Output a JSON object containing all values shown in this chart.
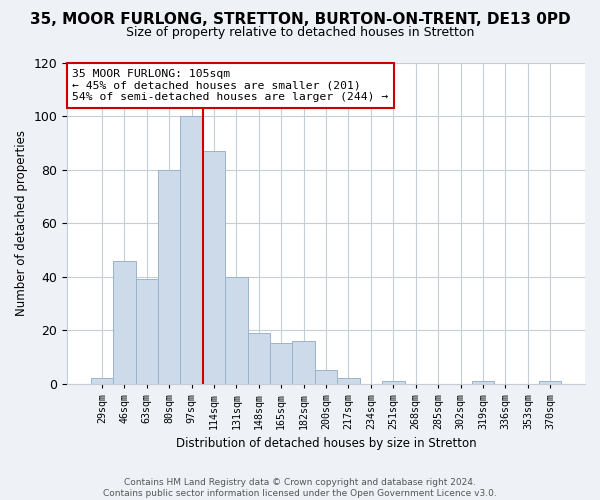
{
  "title": "35, MOOR FURLONG, STRETTON, BURTON-ON-TRENT, DE13 0PD",
  "subtitle": "Size of property relative to detached houses in Stretton",
  "xlabel": "Distribution of detached houses by size in Stretton",
  "ylabel": "Number of detached properties",
  "footer_line1": "Contains HM Land Registry data © Crown copyright and database right 2024.",
  "footer_line2": "Contains public sector information licensed under the Open Government Licence v3.0.",
  "bin_labels": [
    "29sqm",
    "46sqm",
    "63sqm",
    "80sqm",
    "97sqm",
    "114sqm",
    "131sqm",
    "148sqm",
    "165sqm",
    "182sqm",
    "200sqm",
    "217sqm",
    "234sqm",
    "251sqm",
    "268sqm",
    "285sqm",
    "302sqm",
    "319sqm",
    "336sqm",
    "353sqm",
    "370sqm"
  ],
  "bar_values": [
    2,
    46,
    39,
    80,
    100,
    87,
    40,
    19,
    15,
    16,
    5,
    2,
    0,
    1,
    0,
    0,
    0,
    1,
    0,
    0,
    1
  ],
  "bar_color": "#ccdaea",
  "bar_edge_color": "#9ab4cc",
  "vline_color": "#cc0000",
  "vline_idx": 4.5,
  "ylim": [
    0,
    120
  ],
  "yticks": [
    0,
    20,
    40,
    60,
    80,
    100,
    120
  ],
  "annotation_title": "35 MOOR FURLONG: 105sqm",
  "annotation_line1": "← 45% of detached houses are smaller (201)",
  "annotation_line2": "54% of semi-detached houses are larger (244) →",
  "bg_color": "#eef2f7",
  "plot_bg_color": "#ffffff",
  "grid_color": "#c5cdd6",
  "title_fontsize": 11,
  "subtitle_fontsize": 9
}
